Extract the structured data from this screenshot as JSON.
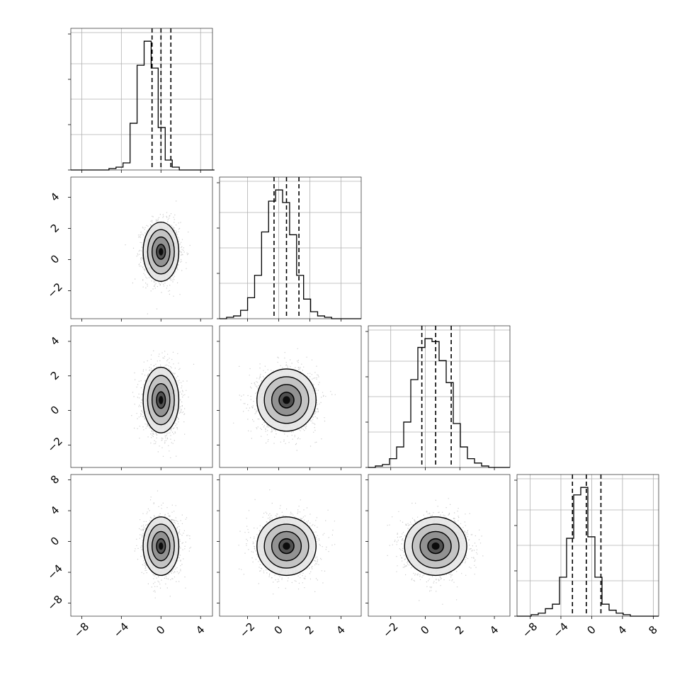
{
  "chart_data": {
    "type": "corner",
    "title": "",
    "n_dims": 4,
    "grid": true,
    "colors": {
      "line": "#000000",
      "grid": "#b0b0b0",
      "frame": "#000000",
      "scatter": "#707070"
    },
    "dims": [
      {
        "label": "",
        "xlim": [
          -9.1,
          5.2
        ],
        "xticks": [
          -8,
          -4,
          0,
          4
        ],
        "xticklabels": [
          "−8",
          "−4",
          "0",
          "4"
        ],
        "quantiles": [
          -0.9,
          0.0,
          1.0
        ],
        "hist_step": 0.71,
        "hist_start": -8.8,
        "hist_counts": [
          0,
          0,
          0,
          0,
          0,
          1,
          2,
          5,
          33,
          74,
          91,
          72,
          30,
          7,
          2,
          0,
          0,
          0,
          0,
          0
        ]
      },
      {
        "label": "",
        "xlim": [
          -3.8,
          5.3
        ],
        "xticks": [
          -2,
          0,
          2,
          4
        ],
        "xticklabels": [
          "−2",
          "0",
          "2",
          "4"
        ],
        "yticks": [
          -2,
          0,
          2,
          4
        ],
        "yticklabels": [
          "−2",
          "0",
          "2",
          "4"
        ],
        "quantiles": [
          -0.3,
          0.5,
          1.3
        ],
        "hist_step": 0.45,
        "hist_start": -3.8,
        "hist_counts": [
          0,
          1,
          2,
          6,
          15,
          31,
          62,
          84,
          92,
          83,
          60,
          31,
          14,
          5,
          2,
          1,
          0,
          0,
          0,
          0
        ]
      },
      {
        "label": "",
        "xlim": [
          -3.3,
          4.9
        ],
        "xticks": [
          -2,
          0,
          2,
          4
        ],
        "xticklabels": [
          "−2",
          "0",
          "2",
          "4"
        ],
        "yticks": [
          -2,
          0,
          2,
          4
        ],
        "yticklabels": [
          "−2",
          "0",
          "2",
          "4"
        ],
        "quantiles": [
          -0.2,
          0.6,
          1.5
        ],
        "hist_step": 0.41,
        "hist_start": -3.3,
        "hist_counts": [
          0,
          1,
          2,
          6,
          14,
          31,
          60,
          82,
          88,
          86,
          73,
          58,
          30,
          14,
          6,
          3,
          1,
          0,
          0,
          0
        ]
      },
      {
        "label": "",
        "xlim": [
          -9.7,
          8.7
        ],
        "xticks": [
          -8,
          -4,
          0,
          4,
          8
        ],
        "xticklabels": [
          "−8",
          "−4",
          "0",
          "4",
          "8"
        ],
        "yticks": [
          -8,
          -4,
          0,
          4,
          8
        ],
        "yticklabels": [
          "−8",
          "−4",
          "0",
          "4",
          "8"
        ],
        "quantiles": [
          -2.5,
          -0.7,
          1.2
        ],
        "hist_step": 0.92,
        "hist_start": -9.7,
        "hist_counts": [
          0,
          0,
          1,
          2,
          5,
          8,
          26,
          52,
          81,
          86,
          53,
          26,
          8,
          4,
          2,
          1,
          0,
          0,
          0,
          0
        ]
      }
    ],
    "pairs": [
      {
        "row": 1,
        "col": 0,
        "mean": [
          0.0,
          0.5
        ],
        "sd": [
          0.9,
          0.95
        ],
        "contour_scale": [
          1.0,
          1.0
        ]
      },
      {
        "row": 2,
        "col": 0,
        "mean": [
          0.0,
          0.6
        ],
        "sd": [
          0.9,
          0.95
        ],
        "contour_scale": [
          1.0,
          1.0
        ]
      },
      {
        "row": 2,
        "col": 1,
        "mean": [
          0.5,
          0.6
        ],
        "sd": [
          0.95,
          0.9
        ],
        "contour_scale": [
          1.0,
          1.0
        ]
      },
      {
        "row": 3,
        "col": 0,
        "mean": [
          0.0,
          -0.6
        ],
        "sd": [
          0.9,
          1.9
        ],
        "contour_scale": [
          1.0,
          1.0
        ]
      },
      {
        "row": 3,
        "col": 1,
        "mean": [
          0.5,
          -0.6
        ],
        "sd": [
          0.95,
          1.9
        ],
        "contour_scale": [
          1.0,
          1.0
        ]
      },
      {
        "row": 3,
        "col": 2,
        "mean": [
          0.6,
          -0.6
        ],
        "sd": [
          0.9,
          1.9
        ],
        "contour_scale": [
          1.0,
          1.0
        ]
      }
    ]
  }
}
